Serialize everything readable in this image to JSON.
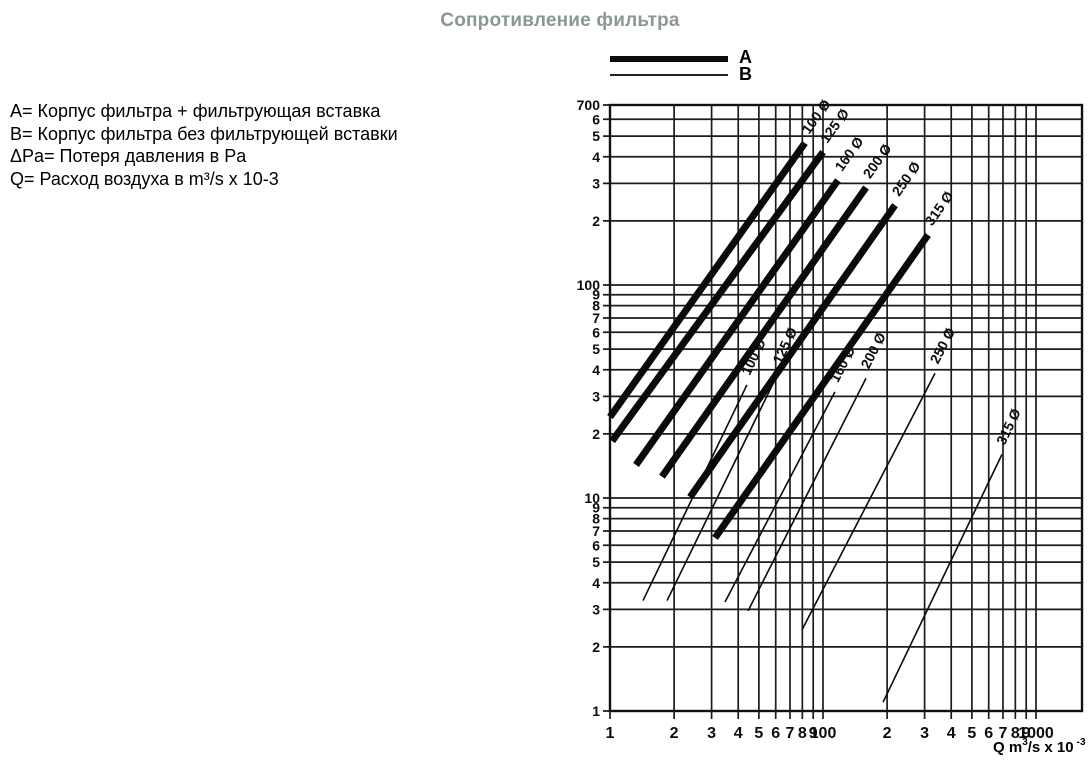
{
  "title": "Сопротивление фильтра",
  "legend": {
    "a": "A",
    "b": "B"
  },
  "notes": {
    "a": "A= Корпус фильтра + фильтрующая вставка",
    "b": "B= Корпус фильтра без фильтрующей вставки",
    "dpa": "ΔPa= Потеря давления в Pa",
    "q": "Q= Расход воздуха в m³/s x 10-3"
  },
  "xaxis_label": {
    "p1": "Q m",
    "s1": "3",
    "p2": "/s x 10",
    "s2": "-3"
  },
  "colors": {
    "title": "#8a9792",
    "grid": "#1c1c1c",
    "frame": "#111111",
    "series": "#0a0a0a",
    "text": "#000000"
  },
  "chart_data": {
    "type": "line",
    "title": "Сопротивление фильтра",
    "xlabel": "Q m³/s x 10⁻³",
    "ylabel": "ΔPa",
    "x_scale": "log",
    "y_scale": "log",
    "y_range": [
      1,
      700
    ],
    "x_right_edge_dec": 2.216,
    "grid": true,
    "legend_entries": [
      {
        "label": "A",
        "meaning": "Корпус фильтра + фильтрующая вставка",
        "style": "thick"
      },
      {
        "label": "B",
        "meaning": "Корпус фильтра без фильтрующей вставки",
        "style": "thin"
      }
    ],
    "x_ticks": [
      {
        "label": "1",
        "dec": 0.0
      },
      {
        "label": "2",
        "dec": 0.301
      },
      {
        "label": "3",
        "dec": 0.477
      },
      {
        "label": "4",
        "dec": 0.602
      },
      {
        "label": "5",
        "dec": 0.699
      },
      {
        "label": "6",
        "dec": 0.778
      },
      {
        "label": "7",
        "dec": 0.845
      },
      {
        "label": "8",
        "dec": 0.903
      },
      {
        "label": "9",
        "dec": 0.954
      },
      {
        "label": "100",
        "dec": 1.0
      },
      {
        "label": "2",
        "dec": 1.301
      },
      {
        "label": "3",
        "dec": 1.477
      },
      {
        "label": "4",
        "dec": 1.602
      },
      {
        "label": "5",
        "dec": 1.699
      },
      {
        "label": "6",
        "dec": 1.778
      },
      {
        "label": "7",
        "dec": 1.845
      },
      {
        "label": "8",
        "dec": 1.903
      },
      {
        "label": "9",
        "dec": 1.954
      },
      {
        "label": "1000",
        "dec": 2.0
      }
    ],
    "y_ticks": [
      {
        "label": "700",
        "pa": 700
      },
      {
        "label": "6",
        "pa": 600
      },
      {
        "label": "5",
        "pa": 500
      },
      {
        "label": "4",
        "pa": 400
      },
      {
        "label": "3",
        "pa": 300
      },
      {
        "label": "2",
        "pa": 200
      },
      {
        "label": "100",
        "pa": 100
      },
      {
        "label": "9",
        "pa": 90
      },
      {
        "label": "8",
        "pa": 80
      },
      {
        "label": "7",
        "pa": 70
      },
      {
        "label": "6",
        "pa": 60
      },
      {
        "label": "5",
        "pa": 50
      },
      {
        "label": "4",
        "pa": 40
      },
      {
        "label": "3",
        "pa": 30
      },
      {
        "label": "2",
        "pa": 20
      },
      {
        "label": "10",
        "pa": 10
      },
      {
        "label": "9",
        "pa": 9
      },
      {
        "label": "8",
        "pa": 8
      },
      {
        "label": "7",
        "pa": 7
      },
      {
        "label": "6",
        "pa": 6
      },
      {
        "label": "5",
        "pa": 5
      },
      {
        "label": "4",
        "pa": 4
      },
      {
        "label": "3",
        "pa": 3
      },
      {
        "label": "2",
        "pa": 2
      },
      {
        "label": "1",
        "pa": 1
      }
    ],
    "series": [
      {
        "id": "a-100",
        "group": "A",
        "label": "100 Ø",
        "from": [
          0.0,
          24.0
        ],
        "to": [
          0.915,
          464
        ]
      },
      {
        "id": "a-125",
        "group": "A",
        "label": "125 Ø",
        "from": [
          0.01,
          18.5
        ],
        "to": [
          1.0,
          421
        ]
      },
      {
        "id": "a-160",
        "group": "A",
        "label": "160 Ø",
        "from": [
          0.122,
          14.3
        ],
        "to": [
          1.07,
          310
        ]
      },
      {
        "id": "a-200",
        "group": "A",
        "label": "200 Ø",
        "from": [
          0.244,
          12.6
        ],
        "to": [
          1.202,
          287
        ]
      },
      {
        "id": "a-250",
        "group": "A",
        "label": "250 Ø",
        "from": [
          0.376,
          10.1
        ],
        "to": [
          1.338,
          237
        ]
      },
      {
        "id": "a-315",
        "group": "A",
        "label": "315 Ø",
        "from": [
          0.493,
          6.5
        ],
        "to": [
          1.493,
          172
        ]
      },
      {
        "id": "b-100",
        "group": "B",
        "label": "100 Ø",
        "from": [
          0.155,
          3.3
        ],
        "to": [
          0.643,
          34.0
        ]
      },
      {
        "id": "b-125",
        "group": "B",
        "label": "125 Ø",
        "from": [
          0.268,
          3.3
        ],
        "to": [
          0.789,
          38.5
        ]
      },
      {
        "id": "b-160",
        "group": "B",
        "label": "160 Ø",
        "from": [
          0.54,
          3.25
        ],
        "to": [
          1.056,
          31.5
        ]
      },
      {
        "id": "b-200",
        "group": "B",
        "label": "200 Ø",
        "from": [
          0.648,
          2.95
        ],
        "to": [
          1.202,
          36.5
        ]
      },
      {
        "id": "b-250",
        "group": "B",
        "label": "250 Ø",
        "from": [
          0.901,
          2.4
        ],
        "to": [
          1.526,
          38.5
        ]
      },
      {
        "id": "b-315",
        "group": "B",
        "label": "315 Ø",
        "from": [
          1.282,
          1.1
        ],
        "to": [
          1.84,
          16.0
        ]
      }
    ]
  }
}
